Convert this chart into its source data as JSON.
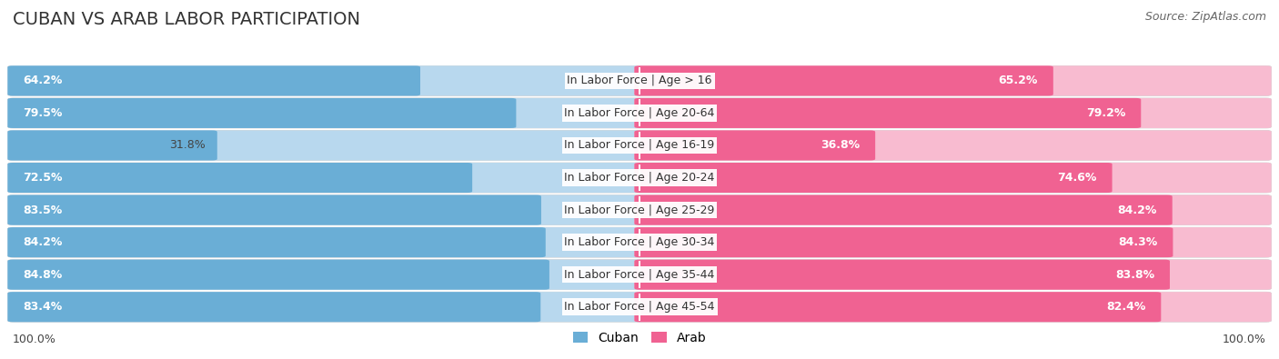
{
  "title": "CUBAN VS ARAB LABOR PARTICIPATION",
  "source": "Source: ZipAtlas.com",
  "categories": [
    "In Labor Force | Age > 16",
    "In Labor Force | Age 20-64",
    "In Labor Force | Age 16-19",
    "In Labor Force | Age 20-24",
    "In Labor Force | Age 25-29",
    "In Labor Force | Age 30-34",
    "In Labor Force | Age 35-44",
    "In Labor Force | Age 45-54"
  ],
  "cuban_values": [
    64.2,
    79.5,
    31.8,
    72.5,
    83.5,
    84.2,
    84.8,
    83.4
  ],
  "arab_values": [
    65.2,
    79.2,
    36.8,
    74.6,
    84.2,
    84.3,
    83.8,
    82.4
  ],
  "cuban_color": "#6aaed6",
  "cuban_color_light": "#b8d8ee",
  "arab_color": "#f06292",
  "arab_color_light": "#f8bbd0",
  "row_bg_color": "#efefef",
  "row_bg_alt": "#e8e8e8",
  "max_val": 100.0,
  "title_fontsize": 14,
  "label_fontsize": 9,
  "value_fontsize": 9,
  "legend_fontsize": 10,
  "source_fontsize": 9
}
